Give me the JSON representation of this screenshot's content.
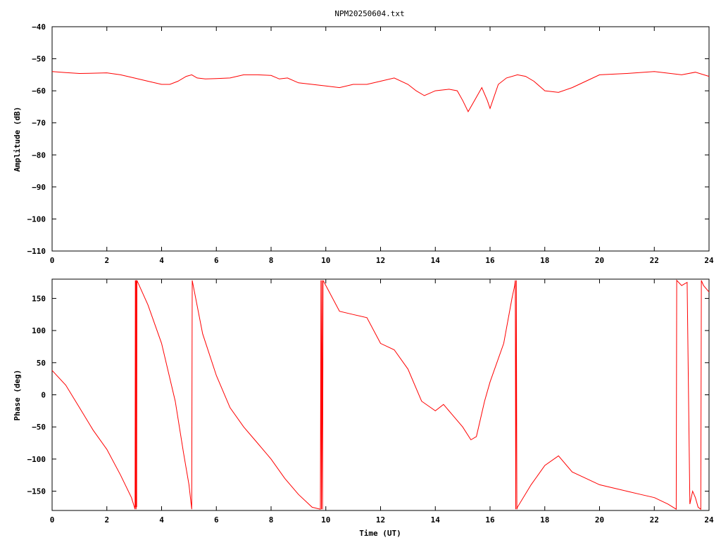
{
  "title": "NPM20250604.txt",
  "colors": {
    "series": "#ff0000",
    "axis": "#000000",
    "background": "#ffffff"
  },
  "chart_data": [
    {
      "type": "line",
      "ylabel": "Amplitude (dB)",
      "xlabel": "",
      "xlim": [
        0,
        24
      ],
      "ylim": [
        -110,
        -40
      ],
      "grid": false,
      "xticks": [
        0,
        2,
        4,
        6,
        8,
        10,
        12,
        14,
        16,
        18,
        20,
        22,
        24
      ],
      "yticks": [
        -110,
        -100,
        -90,
        -80,
        -70,
        -60,
        -50,
        -40
      ],
      "ytick_labels": [
        "−110",
        "−100",
        "−90",
        "−80",
        "−70",
        "−60",
        "−50",
        "−40"
      ],
      "series": [
        {
          "x": [
            0,
            0.5,
            1,
            1.5,
            2,
            2.5,
            3,
            3.5,
            4,
            4.3,
            4.6,
            4.9,
            5.1,
            5.3,
            5.6,
            6,
            6.5,
            7,
            7.5,
            8,
            8.3,
            8.6,
            9,
            9.5,
            10,
            10.5,
            11,
            11.5,
            12,
            12.5,
            13,
            13.3,
            13.6,
            14,
            14.5,
            14.8,
            15,
            15.2,
            15.4,
            15.7,
            15.9,
            16,
            16.3,
            16.6,
            17,
            17.3,
            17.6,
            18,
            18.5,
            19,
            19.5,
            20,
            21,
            22,
            23,
            23.5,
            24
          ],
          "y": [
            -54,
            -54.3,
            -54.6,
            -54.5,
            -54.4,
            -55,
            -56,
            -57,
            -58,
            -58,
            -57,
            -55.5,
            -55,
            -56,
            -56.3,
            -56.2,
            -56,
            -55,
            -55,
            -55.2,
            -56.3,
            -56,
            -57.5,
            -58,
            -58.5,
            -59,
            -58,
            -58,
            -57,
            -56,
            -58,
            -60,
            -61.5,
            -60,
            -59.5,
            -60,
            -63,
            -66.5,
            -63.5,
            -59,
            -63,
            -65.5,
            -58,
            -56,
            -55,
            -55.5,
            -57,
            -60,
            -60.5,
            -59,
            -57,
            -55,
            -54.6,
            -54,
            -55,
            -54.2,
            -55.5
          ]
        }
      ]
    },
    {
      "type": "line",
      "ylabel": "Phase (deg)",
      "xlabel": "Time (UT)",
      "xlim": [
        0,
        24
      ],
      "ylim": [
        -180,
        180
      ],
      "grid": false,
      "xticks": [
        0,
        2,
        4,
        6,
        8,
        10,
        12,
        14,
        16,
        18,
        20,
        22,
        24
      ],
      "yticks": [
        -150,
        -100,
        -50,
        0,
        50,
        100,
        150
      ],
      "ytick_labels": [
        "−150",
        "−100",
        "−50",
        "0",
        "50",
        "100",
        "150"
      ],
      "series": [
        {
          "x": [
            0,
            0.5,
            1,
            1.5,
            2,
            2.5,
            2.9,
            3.03,
            3.04,
            3.05,
            3.06,
            3.07,
            3.08,
            3.09,
            3.1,
            3.5,
            4,
            4.5,
            4.8,
            5,
            5.1,
            5.12,
            5.5,
            6,
            6.5,
            7,
            7.5,
            8,
            8.5,
            9,
            9.5,
            9.8,
            9.82,
            9.84,
            9.86,
            9.88,
            9.9,
            10,
            10.5,
            11,
            11.5,
            12,
            12.5,
            13,
            13.5,
            14,
            14.3,
            14.6,
            15,
            15.3,
            15.5,
            15.8,
            16,
            16.5,
            16.8,
            16.9,
            16.92,
            16.94,
            16.96,
            16.98,
            17,
            17.5,
            18,
            18.5,
            19,
            19.5,
            20,
            20.5,
            21,
            21.5,
            22,
            22.5,
            22.8,
            22.82,
            23,
            23.2,
            23.3,
            23.4,
            23.5,
            23.6,
            23.7,
            23.72,
            23.8,
            24
          ],
          "y": [
            38,
            15,
            -20,
            -55,
            -85,
            -125,
            -160,
            -178,
            178,
            -175,
            178,
            -178,
            178,
            -175,
            178,
            140,
            80,
            -10,
            -90,
            -140,
            -178,
            178,
            95,
            30,
            -20,
            -50,
            -75,
            -100,
            -130,
            -155,
            -175,
            -178,
            178,
            -178,
            178,
            -178,
            178,
            170,
            130,
            125,
            120,
            80,
            70,
            40,
            -10,
            -25,
            -15,
            -30,
            -50,
            -70,
            -65,
            -10,
            20,
            80,
            150,
            170,
            178,
            -178,
            178,
            -178,
            -175,
            -140,
            -110,
            -95,
            -120,
            -130,
            -140,
            -145,
            -150,
            -155,
            -160,
            -170,
            -178,
            178,
            170,
            175,
            -170,
            -150,
            -160,
            -175,
            -178,
            178,
            170,
            160
          ]
        }
      ]
    }
  ]
}
